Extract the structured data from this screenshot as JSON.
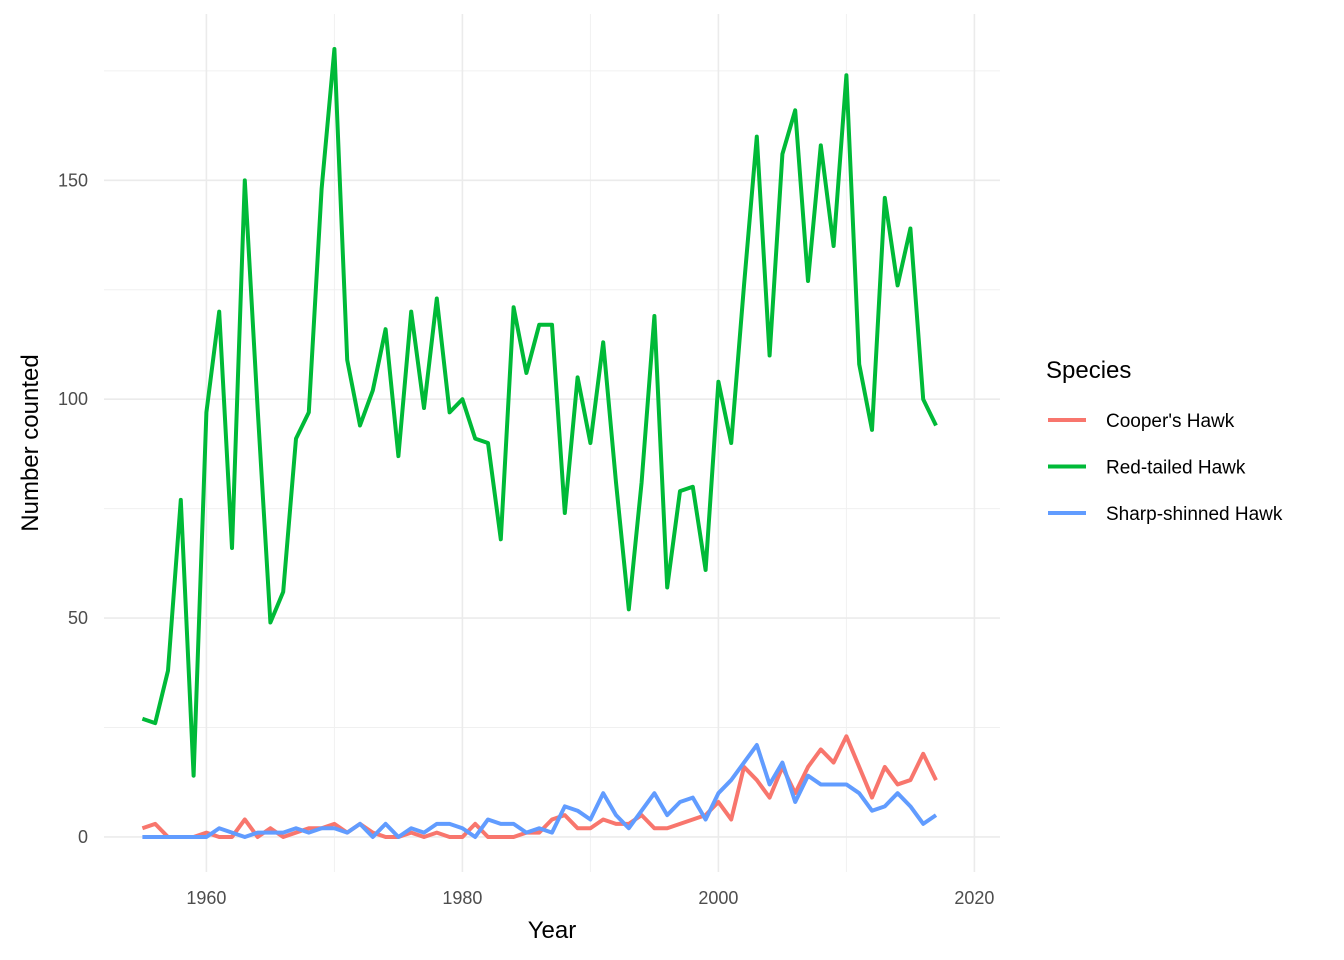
{
  "chart_data": {
    "type": "line",
    "xlabel": "Year",
    "ylabel": "Number counted",
    "xlim": [
      1952,
      2022
    ],
    "ylim": [
      -8,
      188
    ],
    "x_ticks": [
      1960,
      1980,
      2000,
      2020
    ],
    "x_tick_labels": [
      "1960",
      "1980",
      "2000",
      "2020"
    ],
    "y_ticks": [
      0,
      50,
      100,
      150
    ],
    "y_tick_labels": [
      "0",
      "50",
      "100",
      "150"
    ],
    "grid": true,
    "legend": {
      "title": "Species",
      "position": "right"
    },
    "x": [
      1955,
      1956,
      1957,
      1958,
      1959,
      1960,
      1961,
      1962,
      1963,
      1964,
      1965,
      1966,
      1967,
      1968,
      1969,
      1970,
      1971,
      1972,
      1973,
      1974,
      1975,
      1976,
      1977,
      1978,
      1979,
      1980,
      1981,
      1982,
      1983,
      1984,
      1985,
      1986,
      1987,
      1988,
      1989,
      1990,
      1991,
      1992,
      1993,
      1994,
      1995,
      1996,
      1997,
      1998,
      1999,
      2000,
      2001,
      2002,
      2003,
      2004,
      2005,
      2006,
      2007,
      2008,
      2009,
      2010,
      2011,
      2012,
      2013,
      2014,
      2015,
      2016,
      2017
    ],
    "series": [
      {
        "name": "Cooper's Hawk",
        "color": "#F8766D",
        "values": [
          2,
          3,
          0,
          0,
          0,
          1,
          0,
          0,
          4,
          0,
          2,
          0,
          1,
          2,
          2,
          3,
          1,
          3,
          1,
          0,
          0,
          1,
          0,
          1,
          0,
          0,
          3,
          0,
          0,
          0,
          1,
          1,
          4,
          5,
          2,
          2,
          4,
          3,
          3,
          5,
          2,
          2,
          3,
          4,
          5,
          8,
          4,
          16,
          13,
          9,
          16,
          10,
          16,
          20,
          17,
          23,
          16,
          9,
          16,
          12,
          13,
          19,
          13
        ]
      },
      {
        "name": "Red-tailed Hawk",
        "color": "#00BA38",
        "values": [
          27,
          26,
          38,
          77,
          14,
          97,
          120,
          66,
          150,
          98,
          49,
          56,
          91,
          97,
          148,
          180,
          109,
          94,
          102,
          116,
          87,
          120,
          98,
          123,
          97,
          100,
          91,
          90,
          68,
          121,
          106,
          117,
          117,
          74,
          105,
          90,
          113,
          81,
          52,
          81,
          119,
          57,
          79,
          80,
          61,
          104,
          90,
          126,
          160,
          110,
          156,
          166,
          127,
          158,
          135,
          174,
          108,
          93,
          146,
          126,
          139,
          100,
          94
        ]
      },
      {
        "name": "Sharp-shinned Hawk",
        "color": "#619CFF",
        "values": [
          0,
          0,
          0,
          0,
          0,
          0,
          2,
          1,
          0,
          1,
          1,
          1,
          2,
          1,
          2,
          2,
          1,
          3,
          0,
          3,
          0,
          2,
          1,
          3,
          3,
          2,
          0,
          4,
          3,
          3,
          1,
          2,
          1,
          7,
          6,
          4,
          10,
          5,
          2,
          6,
          10,
          5,
          8,
          9,
          4,
          10,
          13,
          17,
          21,
          12,
          17,
          8,
          14,
          12,
          12,
          12,
          10,
          6,
          7,
          10,
          7,
          3,
          5
        ]
      }
    ]
  }
}
